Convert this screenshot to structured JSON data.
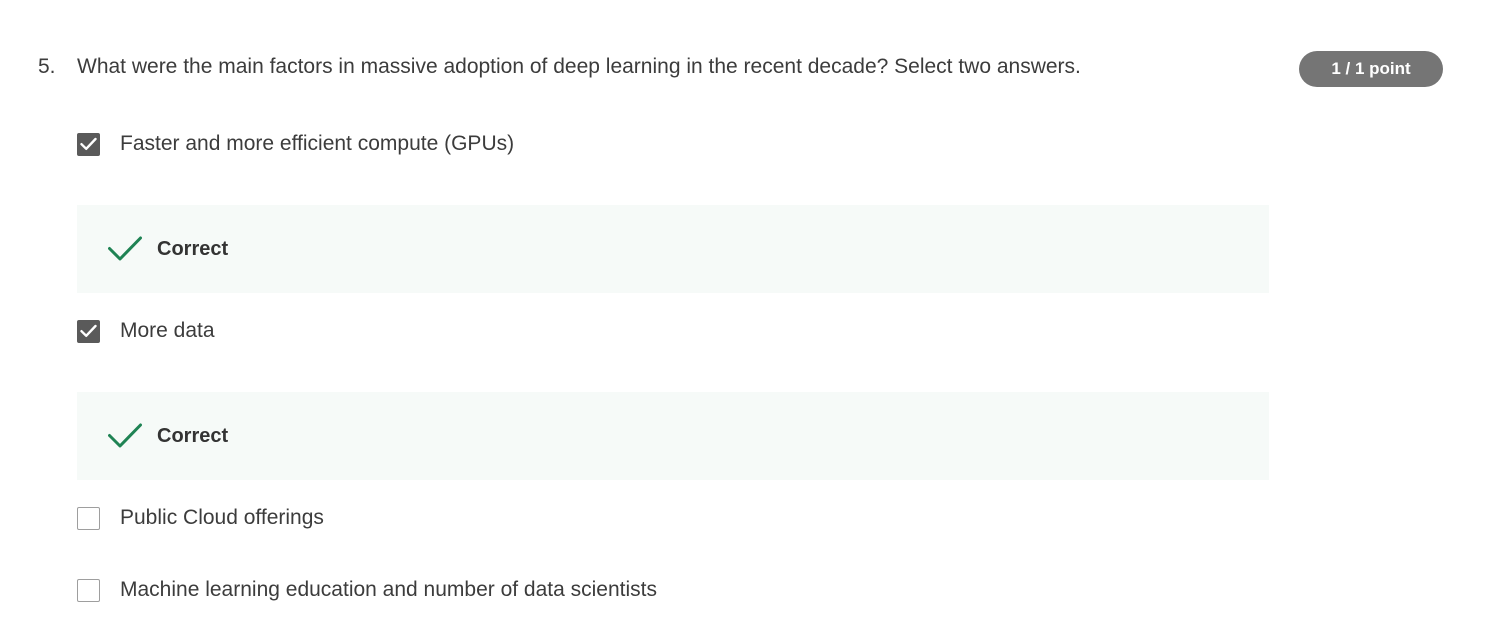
{
  "question": {
    "number": "5.",
    "text": "What were the main factors in massive adoption of deep learning in the recent decade? Select two answers.",
    "score": "1 / 1 point"
  },
  "options": [
    {
      "label": "Faster and more efficient compute (GPUs)",
      "checked": true,
      "feedback": "Correct"
    },
    {
      "label": "More data",
      "checked": true,
      "feedback": "Correct"
    },
    {
      "label": "Public Cloud offerings",
      "checked": false
    },
    {
      "label": "Machine learning education and number of data scientists",
      "checked": false
    }
  ],
  "colors": {
    "correct_check": "#1f8354",
    "feedback_bg": "#f6faf8",
    "badge_bg": "#757575",
    "checkbox_checked": "#5a5a5a"
  },
  "icons": {
    "checkbox_mark": "checkmark-icon",
    "feedback_mark": "correct-check-icon"
  }
}
